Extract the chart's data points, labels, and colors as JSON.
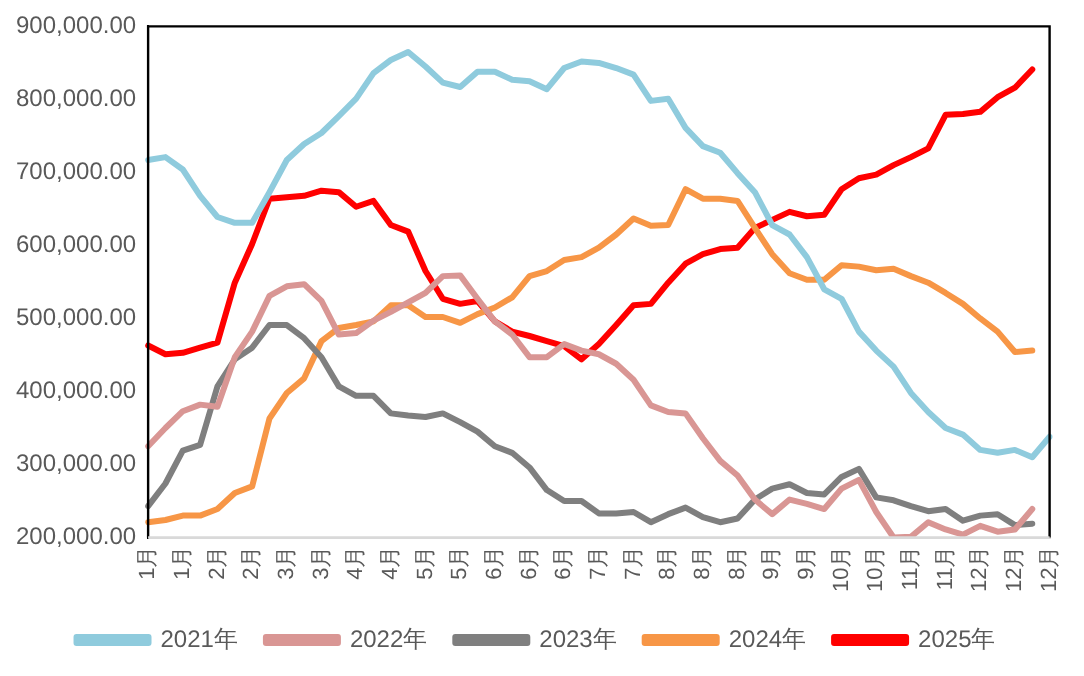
{
  "chart_data": {
    "type": "line",
    "categories": [
      "1月",
      null,
      "1月",
      null,
      "2月",
      null,
      "2月",
      null,
      "3月",
      null,
      "3月",
      null,
      "4月",
      null,
      "4月",
      null,
      "5月",
      null,
      "5月",
      null,
      "6月",
      null,
      "6月",
      null,
      "6月",
      null,
      "7月",
      null,
      "7月",
      null,
      "8月",
      null,
      "8月",
      null,
      "8月",
      null,
      "9月",
      null,
      "9月",
      null,
      "10月",
      null,
      "10月",
      null,
      "11月",
      null,
      "11月",
      null,
      "12月",
      null,
      "12月",
      null,
      "12月"
    ],
    "series": [
      {
        "name": "2021年",
        "color": "#8fcbdd",
        "values": [
          717000,
          721000,
          704000,
          668000,
          639000,
          631000,
          631000,
          673000,
          717000,
          739000,
          754000,
          777000,
          801000,
          836000,
          854000,
          865000,
          845000,
          823000,
          817000,
          838000,
          838000,
          827000,
          825000,
          814000,
          843000,
          852000,
          850000,
          843000,
          834000,
          798000,
          801000,
          761000,
          736000,
          727000,
          699000,
          673000,
          628000,
          615000,
          584000,
          540000,
          527000,
          482000,
          456000,
          434000,
          398000,
          372000,
          350000,
          341000,
          320000,
          316000,
          320000,
          310000,
          338000
        ]
      },
      {
        "name": "2022年",
        "color": "#d99694",
        "values": [
          325000,
          350000,
          373000,
          382000,
          379000,
          447000,
          482000,
          531000,
          544000,
          547000,
          524000,
          478000,
          480000,
          497000,
          509000,
          522000,
          535000,
          558000,
          559000,
          527000,
          496000,
          478000,
          447000,
          447000,
          465000,
          456000,
          451000,
          438000,
          416000,
          381000,
          372000,
          370000,
          336000,
          305000,
          285000,
          252000,
          232000,
          252000,
          246000,
          239000,
          267000,
          279000,
          235000,
          200000,
          201000,
          221000,
          211000,
          204000,
          216000,
          208000,
          211000,
          239000,
          null
        ]
      },
      {
        "name": "2023年",
        "color": "#7f7f7f",
        "values": [
          243000,
          274000,
          319000,
          327000,
          407000,
          444000,
          460000,
          491000,
          491000,
          473000,
          447000,
          407000,
          394000,
          394000,
          370000,
          367000,
          365000,
          370000,
          358000,
          345000,
          325000,
          316000,
          296000,
          265000,
          250000,
          250000,
          233000,
          233000,
          235000,
          221000,
          232000,
          241000,
          228000,
          221000,
          226000,
          252000,
          267000,
          273000,
          261000,
          259000,
          283000,
          294000,
          255000,
          251000,
          243000,
          236000,
          239000,
          223000,
          230000,
          232000,
          217000,
          219000,
          null
        ]
      },
      {
        "name": "2024年",
        "color": "#f79646",
        "values": [
          221000,
          224000,
          230000,
          230000,
          239000,
          261000,
          270000,
          363000,
          398000,
          418000,
          469000,
          487000,
          491000,
          496000,
          518000,
          518000,
          502000,
          502000,
          494000,
          506000,
          515000,
          529000,
          558000,
          565000,
          580000,
          584000,
          597000,
          615000,
          637000,
          627000,
          628000,
          677000,
          664000,
          664000,
          661000,
          624000,
          588000,
          562000,
          553000,
          553000,
          573000,
          571000,
          566000,
          568000,
          558000,
          549000,
          535000,
          520000,
          500000,
          482000,
          454000,
          456000,
          null
        ]
      },
      {
        "name": "2025年",
        "color": "#ff0000",
        "values": [
          463000,
          451000,
          453000,
          460000,
          467000,
          549000,
          602000,
          664000,
          666000,
          668000,
          675000,
          673000,
          653000,
          661000,
          628000,
          619000,
          565000,
          527000,
          520000,
          524000,
          496000,
          482000,
          476000,
          469000,
          462000,
          444000,
          465000,
          491000,
          518000,
          520000,
          549000,
          575000,
          588000,
          595000,
          597000,
          624000,
          635000,
          646000,
          640000,
          642000,
          677000,
          692000,
          697000,
          710000,
          721000,
          733000,
          779000,
          780000,
          783000,
          803000,
          816000,
          841000,
          null
        ]
      }
    ],
    "ylim": [
      200000,
      900000
    ],
    "yticks": [
      {
        "value": 200000,
        "label": "200,000.00"
      },
      {
        "value": 300000,
        "label": "300,000.00"
      },
      {
        "value": 400000,
        "label": "400,000.00"
      },
      {
        "value": 500000,
        "label": "500,000.00"
      },
      {
        "value": 600000,
        "label": "600,000.00"
      },
      {
        "value": 700000,
        "label": "700,000.00"
      },
      {
        "value": 800000,
        "label": "800,000.00"
      },
      {
        "value": 900000,
        "label": "900,000.00"
      }
    ],
    "legend": "bottom",
    "marker": "none",
    "line_style": "solid"
  }
}
